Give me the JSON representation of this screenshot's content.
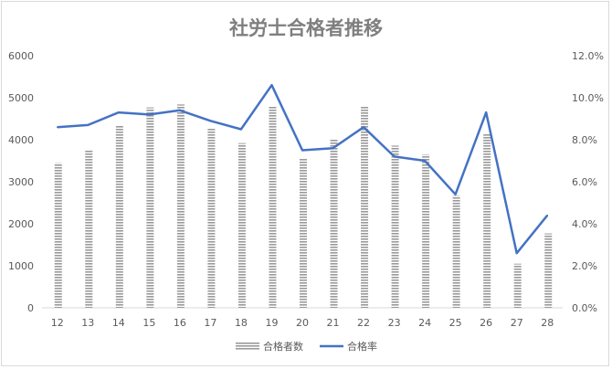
{
  "chart_data": {
    "type": "bar",
    "title": "社労士合格者推移",
    "categories": [
      "12",
      "13",
      "14",
      "15",
      "16",
      "17",
      "18",
      "19",
      "20",
      "21",
      "22",
      "23",
      "24",
      "25",
      "26",
      "27",
      "28"
    ],
    "series": [
      {
        "name": "合格者数",
        "type": "bar",
        "axis": "left",
        "values": [
          3450,
          3770,
          4330,
          4770,
          4840,
          4270,
          3920,
          4800,
          3570,
          4000,
          4790,
          3860,
          3650,
          2670,
          4150,
          1050,
          1770
        ]
      },
      {
        "name": "合格率",
        "type": "line",
        "axis": "right",
        "values": [
          8.6,
          8.7,
          9.3,
          9.2,
          9.4,
          8.9,
          8.5,
          10.6,
          7.5,
          7.6,
          8.6,
          7.2,
          7.0,
          5.4,
          9.3,
          2.6,
          4.4
        ]
      }
    ],
    "y_left": {
      "ylim": [
        0,
        6000
      ],
      "ticks": [
        "0",
        "1000",
        "2000",
        "3000",
        "4000",
        "5000",
        "6000"
      ]
    },
    "y_right": {
      "ylim": [
        0,
        12
      ],
      "ticks": [
        "0.0%",
        "2.0%",
        "4.0%",
        "6.0%",
        "8.0%",
        "10.0%",
        "12.0%"
      ]
    },
    "grid": false,
    "legend": "bottom",
    "colors": {
      "bar": "#a6a6a6",
      "line": "#4472c4",
      "title": "#7f7f7f",
      "axis_text": "#595959"
    }
  }
}
